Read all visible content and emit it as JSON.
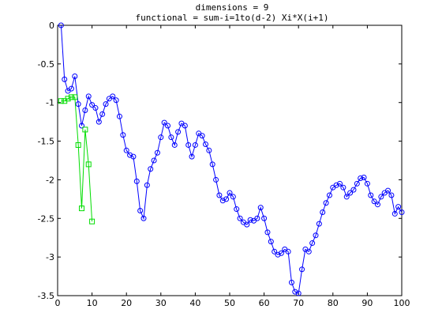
{
  "chart_data": {
    "type": "line",
    "title": [
      "dimensions = 9",
      "functional = sum-i=1to(d-2) Xi*X(i+1)"
    ],
    "xlabel": "",
    "ylabel": "",
    "xlim": [
      0,
      100
    ],
    "ylim": [
      -3.5,
      0
    ],
    "xticks": [
      0,
      10,
      20,
      30,
      40,
      50,
      60,
      70,
      80,
      90,
      100
    ],
    "yticks": [
      0,
      -0.5,
      -1,
      -1.5,
      -2,
      -2.5,
      -3,
      -3.5
    ],
    "grid": false,
    "series": [
      {
        "color": "#0000ff",
        "marker": "circle",
        "x": [
          1,
          2,
          3,
          4,
          5,
          6,
          7,
          8,
          9,
          10,
          11,
          12,
          13,
          14,
          15,
          16,
          17,
          18,
          19,
          20,
          21,
          22,
          23,
          24,
          25,
          26,
          27,
          28,
          29,
          30,
          31,
          32,
          33,
          34,
          35,
          36,
          37,
          38,
          39,
          40,
          41,
          42,
          43,
          44,
          45,
          46,
          47,
          48,
          49,
          50,
          51,
          52,
          53,
          54,
          55,
          56,
          57,
          58,
          59,
          60,
          61,
          62,
          63,
          64,
          65,
          66,
          67,
          68,
          69,
          70,
          71,
          72,
          73,
          74,
          75,
          76,
          77,
          78,
          79,
          80,
          81,
          82,
          83,
          84,
          85,
          86,
          87,
          88,
          89,
          90,
          91,
          92,
          93,
          94,
          95,
          96,
          97,
          98,
          99,
          100
        ],
        "y": [
          0,
          -0.7,
          -0.85,
          -0.82,
          -0.66,
          -1.02,
          -1.3,
          -1.1,
          -0.92,
          -1.03,
          -1.07,
          -1.25,
          -1.15,
          -1.02,
          -0.95,
          -0.92,
          -0.97,
          -1.18,
          -1.42,
          -1.62,
          -1.68,
          -1.7,
          -2.02,
          -2.4,
          -2.5,
          -2.07,
          -1.86,
          -1.75,
          -1.65,
          -1.45,
          -1.26,
          -1.3,
          -1.45,
          -1.55,
          -1.38,
          -1.27,
          -1.3,
          -1.55,
          -1.7,
          -1.55,
          -1.4,
          -1.43,
          -1.54,
          -1.62,
          -1.8,
          -2.0,
          -2.2,
          -2.27,
          -2.25,
          -2.17,
          -2.22,
          -2.38,
          -2.5,
          -2.55,
          -2.58,
          -2.52,
          -2.53,
          -2.5,
          -2.36,
          -2.5,
          -2.68,
          -2.8,
          -2.93,
          -2.97,
          -2.95,
          -2.9,
          -2.93,
          -3.33,
          -3.45,
          -3.47,
          -3.16,
          -2.9,
          -2.93,
          -2.82,
          -2.72,
          -2.57,
          -2.42,
          -2.3,
          -2.2,
          -2.1,
          -2.07,
          -2.05,
          -2.1,
          -2.22,
          -2.17,
          -2.13,
          -2.05,
          -1.98,
          -1.97,
          -2.05,
          -2.2,
          -2.28,
          -2.32,
          -2.22,
          -2.17,
          -2.14,
          -2.2,
          -2.44,
          -2.35,
          -2.42
        ]
      },
      {
        "color": "#00dd00",
        "marker": "square",
        "x": [
          1,
          2,
          3,
          4,
          5,
          6,
          7,
          8,
          9,
          10
        ],
        "y": [
          -0.98,
          -0.98,
          -0.95,
          -0.93,
          -0.93,
          -1.55,
          -2.37,
          -1.35,
          -1.8,
          -2.54
        ]
      }
    ]
  }
}
